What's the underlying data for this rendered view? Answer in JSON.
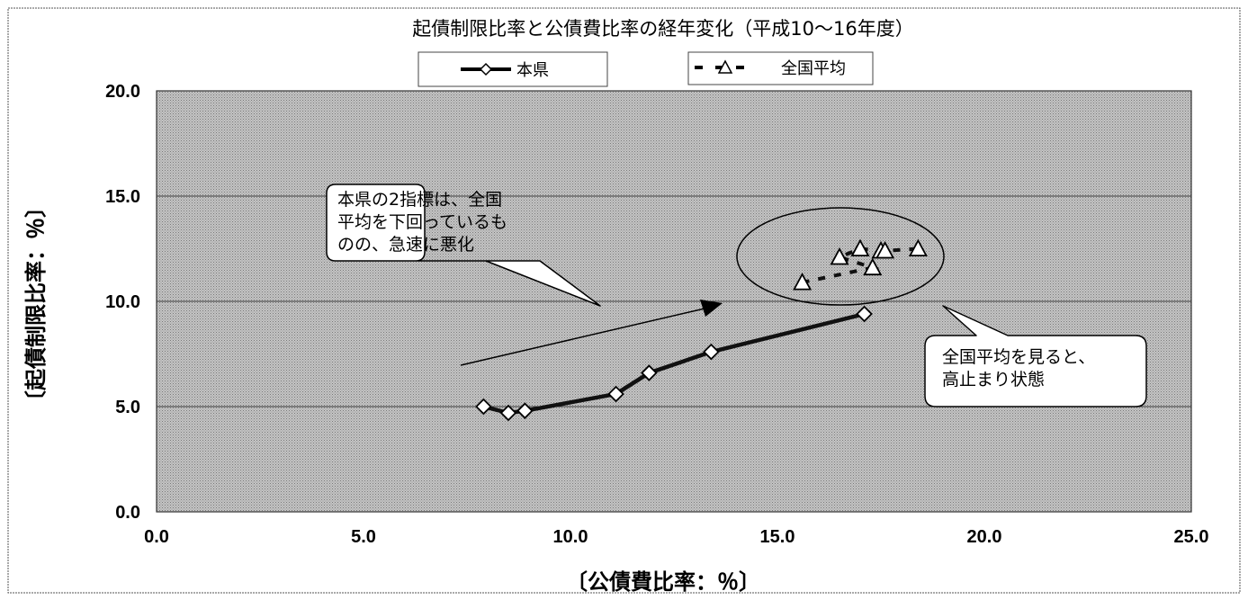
{
  "chart_data": {
    "type": "scatter",
    "title": "起債制限比率と公債費比率の経年変化（平成10～16年度）",
    "xlabel": "〔公債費比率：％〕",
    "ylabel": "〔起債制限比率：％〕",
    "xlim": [
      0,
      25
    ],
    "ylim": [
      0,
      20
    ],
    "xticks": [
      "0.0",
      "5.0",
      "10.0",
      "15.0",
      "20.0",
      "25.0"
    ],
    "yticks": [
      "0.0",
      "5.0",
      "10.0",
      "15.0",
      "20.0"
    ],
    "grid": "horizontal",
    "legend_position": "top",
    "series": [
      {
        "name": "本県",
        "marker": "diamond",
        "line": "solid",
        "points": [
          {
            "x": 7.9,
            "y": 5.0
          },
          {
            "x": 8.5,
            "y": 4.7
          },
          {
            "x": 8.9,
            "y": 4.8
          },
          {
            "x": 11.1,
            "y": 5.6
          },
          {
            "x": 11.9,
            "y": 6.6
          },
          {
            "x": 13.4,
            "y": 7.6
          },
          {
            "x": 17.1,
            "y": 9.4
          }
        ]
      },
      {
        "name": "全国平均",
        "marker": "triangle",
        "line": "dashed",
        "points": [
          {
            "x": 15.6,
            "y": 10.9
          },
          {
            "x": 17.3,
            "y": 11.6
          },
          {
            "x": 16.5,
            "y": 12.1
          },
          {
            "x": 17.0,
            "y": 12.5
          },
          {
            "x": 17.5,
            "y": 12.4
          },
          {
            "x": 17.6,
            "y": 12.4
          },
          {
            "x": 18.4,
            "y": 12.5
          }
        ]
      }
    ],
    "annotations": [
      {
        "id": "callout-left",
        "lines": [
          "本県の2指標は、全国",
          "平均を下回っているも",
          "のの、急速に悪化"
        ]
      },
      {
        "id": "callout-right",
        "lines": [
          "全国平均を見ると、",
          "高止まり状態"
        ]
      }
    ],
    "colors": {
      "plot_background": "#b9b9b9",
      "gridline": "#333333",
      "line": "#111111"
    }
  }
}
